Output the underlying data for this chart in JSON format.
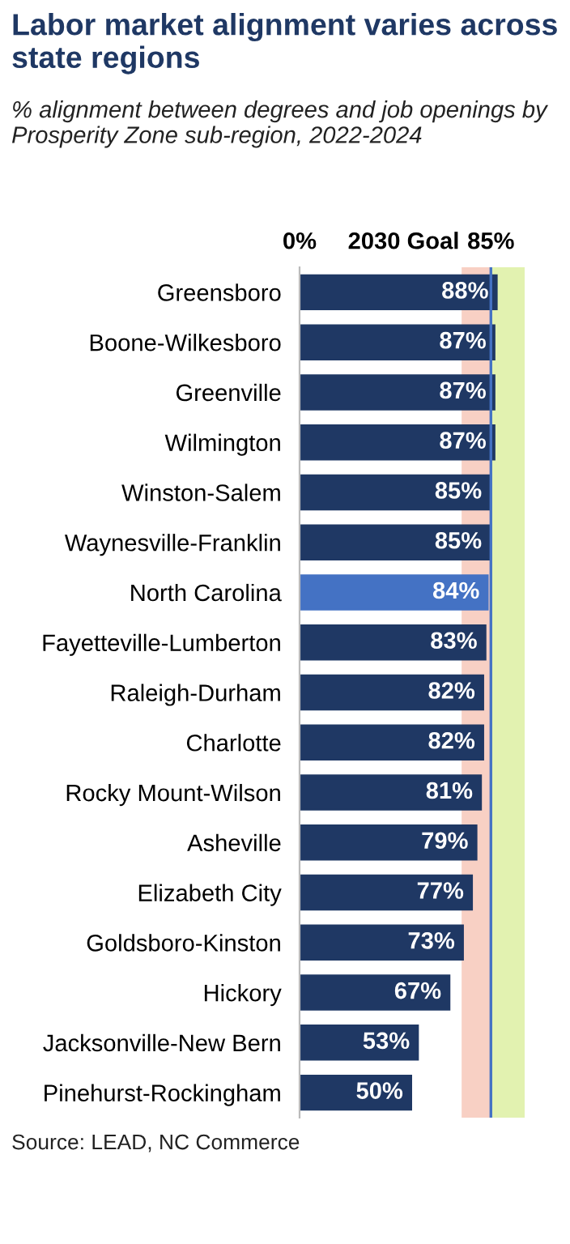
{
  "chart_data": {
    "type": "bar",
    "orientation": "horizontal",
    "title": "Labor market alignment varies across state regions",
    "subtitle": "% alignment between degrees and job openings by Prosperity Zone sub-region, 2022-2024",
    "categories": [
      "Greensboro",
      "Boone-Wilkesboro",
      "Greenville",
      "Wilmington",
      "Winston-Salem",
      "Waynesville-Franklin",
      "North Carolina",
      "Fayetteville-Lumberton",
      "Raleigh-Durham",
      "Charlotte",
      "Rocky Mount-Wilson",
      "Asheville",
      "Elizabeth City",
      "Goldsboro-Kinston",
      "Hickory",
      "Jacksonville-New Bern",
      "Pinehurst-Rockingham"
    ],
    "values": [
      88,
      87,
      87,
      87,
      85,
      85,
      84,
      83,
      82,
      82,
      81,
      79,
      77,
      73,
      67,
      53,
      50
    ],
    "value_labels": [
      "88%",
      "87%",
      "87%",
      "87%",
      "85%",
      "85%",
      "84%",
      "83%",
      "82%",
      "82%",
      "81%",
      "79%",
      "77%",
      "73%",
      "67%",
      "53%",
      "50%"
    ],
    "colors": [
      "#1f3864",
      "#1f3864",
      "#1f3864",
      "#1f3864",
      "#1f3864",
      "#1f3864",
      "#4472c4",
      "#1f3864",
      "#1f3864",
      "#1f3864",
      "#1f3864",
      "#1f3864",
      "#1f3864",
      "#1f3864",
      "#1f3864",
      "#1f3864",
      "#1f3864"
    ],
    "xlim": [
      0,
      100
    ],
    "xticks": [
      {
        "value": 0,
        "label": "0%"
      },
      {
        "value": 85,
        "label": "85%"
      }
    ],
    "ref_lines": [
      {
        "axis": "x",
        "value": 85,
        "label": "2030 Goal",
        "color": "#4472c4"
      }
    ],
    "bands": [
      {
        "axis": "x",
        "from": 72,
        "to": 85,
        "color": "#f8d0c4"
      },
      {
        "axis": "x",
        "from": 85,
        "to": 100,
        "color": "#e2f2b0"
      }
    ],
    "grid": false,
    "legend": false,
    "annotations": [
      "Source: LEAD, NC Commerce"
    ]
  }
}
